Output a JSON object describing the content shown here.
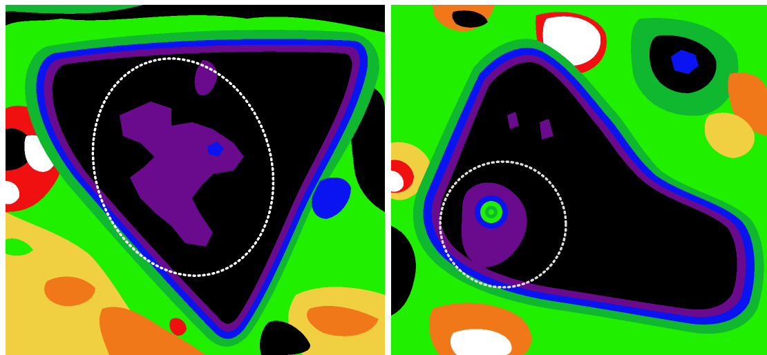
{
  "figure": {
    "panels": [
      {
        "name": "left-panel",
        "roi_marker": "ellipse"
      },
      {
        "name": "right-panel",
        "roi_marker": "circle"
      }
    ],
    "palette": {
      "background": "#000000",
      "deep": "#6a0a8c",
      "ring_blue": "#0a14f0",
      "ring_green_dark": "#10b830",
      "ring_green": "#20f000",
      "ring_yellow": "#f0d040",
      "ring_orange": "#f07818",
      "ring_red": "#f01010",
      "peak": "#ffffff",
      "roi_outline": "#ffffff"
    }
  }
}
